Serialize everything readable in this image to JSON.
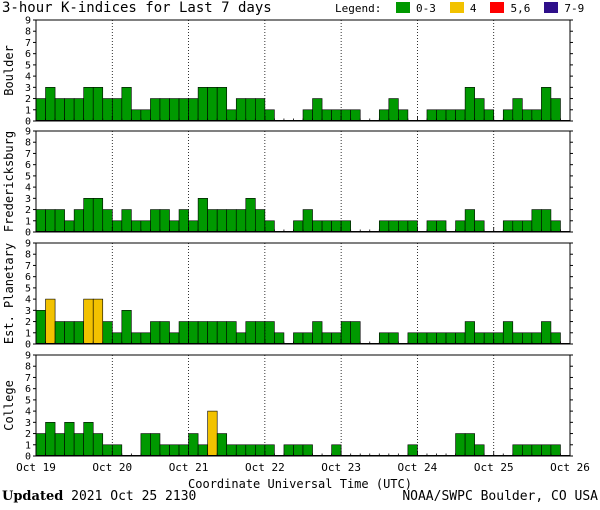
{
  "title": "3-hour K-indices for Last 7 days",
  "legend": {
    "label": "Legend:",
    "items": [
      {
        "text": "0-3",
        "color": "#009900"
      },
      {
        "text": "4",
        "color": "#f2c200"
      },
      {
        "text": "5,6",
        "color": "#ff0000"
      },
      {
        "text": "7-9",
        "color": "#2e0f8a"
      }
    ]
  },
  "footer": {
    "updated_label": "Updated",
    "updated_time": "2021 Oct 25 2130",
    "credit": "NOAA/SWPC Boulder, CO USA"
  },
  "chart_data": {
    "type": "bar",
    "xlabel": "Coordinate Universal Time (UTC)",
    "x_ticks": [
      "Oct 19",
      "Oct 20",
      "Oct 21",
      "Oct 22",
      "Oct 23",
      "Oct 24",
      "Oct 25",
      "Oct 26"
    ],
    "ylim": [
      0,
      9
    ],
    "y_ticks": [
      0,
      1,
      2,
      3,
      4,
      5,
      6,
      7,
      8,
      9
    ],
    "panels": [
      {
        "name": "Boulder",
        "values": [
          2,
          3,
          2,
          2,
          2,
          3,
          3,
          2,
          2,
          3,
          1,
          1,
          2,
          2,
          2,
          2,
          2,
          3,
          3,
          3,
          1,
          2,
          2,
          2,
          1,
          0,
          0,
          0,
          1,
          2,
          1,
          1,
          1,
          1,
          0,
          0,
          1,
          2,
          1,
          0,
          0,
          1,
          1,
          1,
          1,
          3,
          2,
          1,
          0,
          1,
          2,
          1,
          1,
          3,
          2,
          0
        ]
      },
      {
        "name": "Fredericksburg",
        "values": [
          2,
          2,
          2,
          1,
          2,
          3,
          3,
          2,
          1,
          2,
          1,
          1,
          2,
          2,
          1,
          2,
          1,
          3,
          2,
          2,
          2,
          2,
          3,
          2,
          1,
          0,
          0,
          1,
          2,
          1,
          1,
          1,
          1,
          0,
          0,
          0,
          1,
          1,
          1,
          1,
          0,
          1,
          1,
          0,
          1,
          2,
          1,
          0,
          0,
          1,
          1,
          1,
          2,
          2,
          1,
          0
        ]
      },
      {
        "name": "Est. Planetary",
        "values": [
          3,
          4,
          2,
          2,
          2,
          4,
          4,
          2,
          1,
          3,
          1,
          1,
          2,
          2,
          1,
          2,
          2,
          2,
          2,
          2,
          2,
          1,
          2,
          2,
          2,
          1,
          0,
          1,
          1,
          2,
          1,
          1,
          2,
          2,
          0,
          0,
          1,
          1,
          0,
          1,
          1,
          1,
          1,
          1,
          1,
          2,
          1,
          1,
          1,
          2,
          1,
          1,
          1,
          2,
          1,
          0
        ]
      },
      {
        "name": "College",
        "values": [
          2,
          3,
          2,
          3,
          2,
          3,
          2,
          1,
          1,
          0,
          0,
          2,
          2,
          1,
          1,
          1,
          2,
          1,
          4,
          2,
          1,
          1,
          1,
          1,
          1,
          0,
          1,
          1,
          1,
          0,
          0,
          1,
          0,
          0,
          0,
          0,
          0,
          0,
          0,
          1,
          0,
          0,
          0,
          0,
          2,
          2,
          1,
          0,
          0,
          0,
          1,
          1,
          1,
          1,
          1,
          0
        ]
      }
    ]
  }
}
